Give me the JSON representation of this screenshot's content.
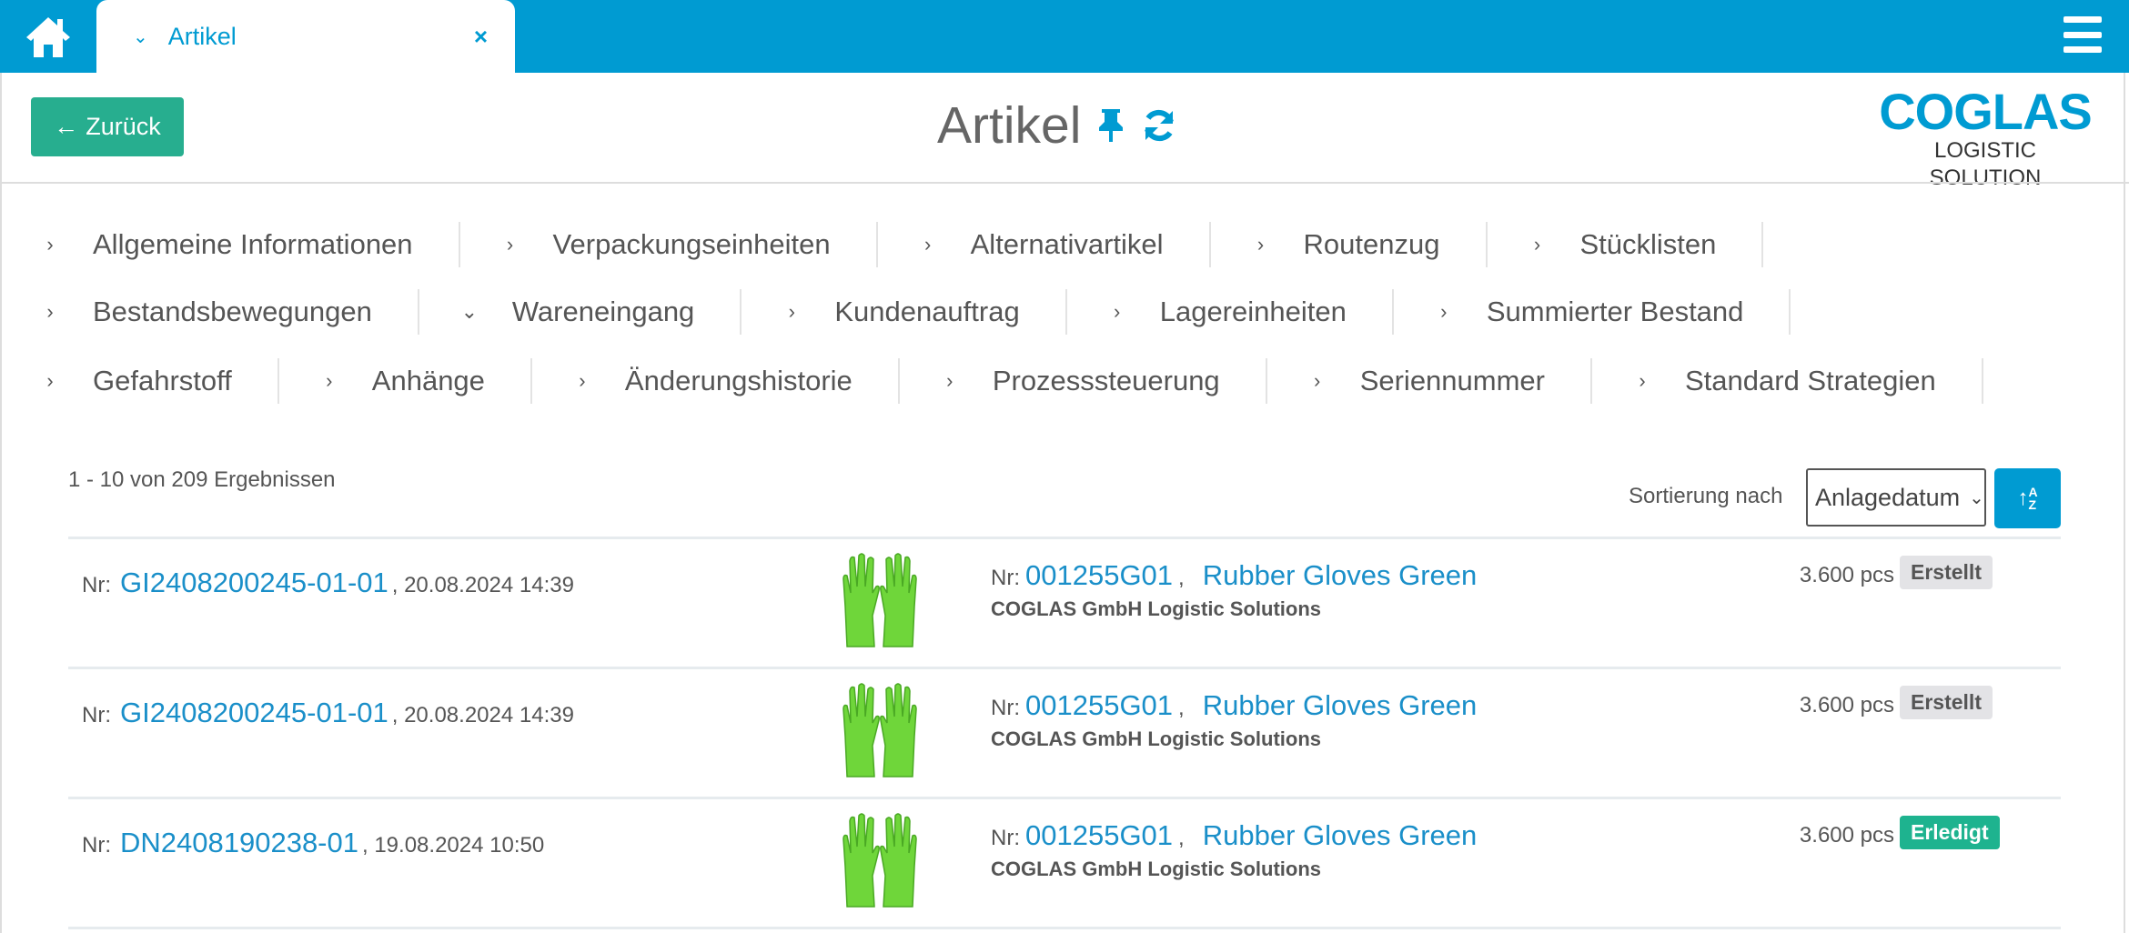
{
  "topbar": {
    "tab_label": "Artikel",
    "icons": [
      "home-icon",
      "chevron-down-icon",
      "close-icon",
      "hamburger-icon"
    ]
  },
  "header": {
    "back_label": "Zurück",
    "title": "Artikel",
    "logo_main": "COGLAS",
    "logo_sub": "LOGISTIC SOLUTION"
  },
  "nav": {
    "rows": [
      [
        {
          "label": "Allgemeine Informationen",
          "open": false
        },
        {
          "label": "Verpackungseinheiten",
          "open": false
        },
        {
          "label": "Alternativartikel",
          "open": false
        },
        {
          "label": "Routenzug",
          "open": false
        },
        {
          "label": "Stücklisten",
          "open": false
        }
      ],
      [
        {
          "label": "Bestandsbewegungen",
          "open": false
        },
        {
          "label": "Wareneingang",
          "open": true
        },
        {
          "label": "Kundenauftrag",
          "open": false
        },
        {
          "label": "Lagereinheiten",
          "open": false
        },
        {
          "label": "Summierter Bestand",
          "open": false
        }
      ],
      [
        {
          "label": "Gefahrstoff",
          "open": false
        },
        {
          "label": "Anhänge",
          "open": false
        },
        {
          "label": "Änderungshistorie",
          "open": false
        },
        {
          "label": "Prozesssteuerung",
          "open": false
        },
        {
          "label": "Seriennummer",
          "open": false
        },
        {
          "label": "Standard Strategien",
          "open": false
        }
      ]
    ]
  },
  "list": {
    "results": "1 - 10 von 209 Ergebnissen",
    "sort_label": "Sortierung nach",
    "sort_value": "Anlagedatum",
    "rows": [
      {
        "nr_label": "Nr:",
        "doc": "GI2408200245-01-01",
        "date": ", 20.08.2024 14:39",
        "art_label": "Nr:",
        "art_nr": "001255G01",
        "sep": ",",
        "art_name": "Rubber Gloves Green",
        "company": "COGLAS GmbH Logistic Solutions",
        "qty": "3.600 pcs",
        "status": "Erstellt",
        "status_color": "#e3e3e6",
        "status_text_color": "#555"
      },
      {
        "nr_label": "Nr:",
        "doc": "GI2408200245-01-01",
        "date": ", 20.08.2024 14:39",
        "art_label": "Nr:",
        "art_nr": "001255G01",
        "sep": ",",
        "art_name": "Rubber Gloves Green",
        "company": "COGLAS GmbH Logistic Solutions",
        "qty": "3.600 pcs",
        "status": "Erstellt",
        "status_color": "#e3e3e6",
        "status_text_color": "#555"
      },
      {
        "nr_label": "Nr:",
        "doc": "DN2408190238-01",
        "date": ", 19.08.2024 10:50",
        "art_label": "Nr:",
        "art_nr": "001255G01",
        "sep": ",",
        "art_name": "Rubber Gloves Green",
        "company": "COGLAS GmbH Logistic Solutions",
        "qty": "3.600 pcs",
        "status": "Erledigt",
        "status_color": "#1eb38f",
        "status_text_color": "#fff"
      }
    ]
  },
  "colors": {
    "primary": "#009bd2",
    "success": "#27ae8f"
  }
}
